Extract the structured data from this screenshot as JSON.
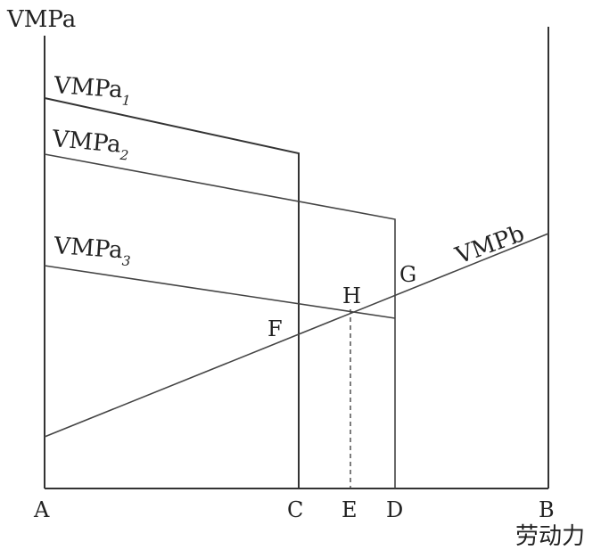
{
  "diagram": {
    "y_axis_label": "VMPa",
    "x_axis_label": "劳动力",
    "curves": {
      "a1": {
        "label": "VMPa",
        "subscript": "1"
      },
      "a2": {
        "label": "VMPa",
        "subscript": "2"
      },
      "a3": {
        "label": "VMPa",
        "subscript": "3"
      },
      "b": {
        "label": "VMPb"
      }
    },
    "points": {
      "A": "A",
      "B": "B",
      "C": "C",
      "D": "D",
      "E": "E",
      "F": "F",
      "G": "G",
      "H": "H"
    }
  }
}
